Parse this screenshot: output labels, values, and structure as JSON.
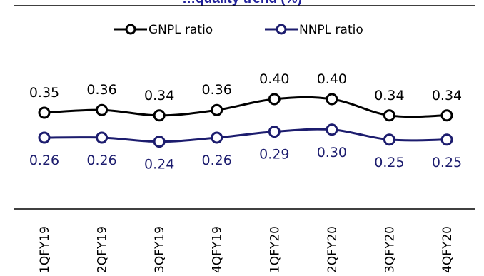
{
  "chart_data": {
    "type": "line",
    "title": "…quality trend (%)",
    "categories": [
      "1QFY19",
      "2QFY19",
      "3QFY19",
      "4QFY19",
      "1QFY20",
      "2QFY20",
      "3QFY20",
      "4QFY20"
    ],
    "series": [
      {
        "name": "GNPL ratio",
        "color": "#000000",
        "values": [
          0.35,
          0.36,
          0.34,
          0.36,
          0.4,
          0.4,
          0.34,
          0.34
        ],
        "labels": [
          "0.35",
          "0.36",
          "0.34",
          "0.36",
          "0.40",
          "0.40",
          "0.34",
          "0.34"
        ]
      },
      {
        "name": "NNPL ratio",
        "color": "#1c1c6e",
        "values": [
          0.26,
          0.26,
          0.24,
          0.26,
          0.29,
          0.3,
          0.25,
          0.25
        ],
        "labels": [
          "0.26",
          "0.26",
          "0.24",
          "0.26",
          "0.29",
          "0.30",
          "0.25",
          "0.25"
        ]
      }
    ],
    "legend": "top-center",
    "grid": false,
    "data_labels": true,
    "marker": "circle",
    "smooth": true,
    "ylim": [
      0.0,
      0.5
    ]
  }
}
